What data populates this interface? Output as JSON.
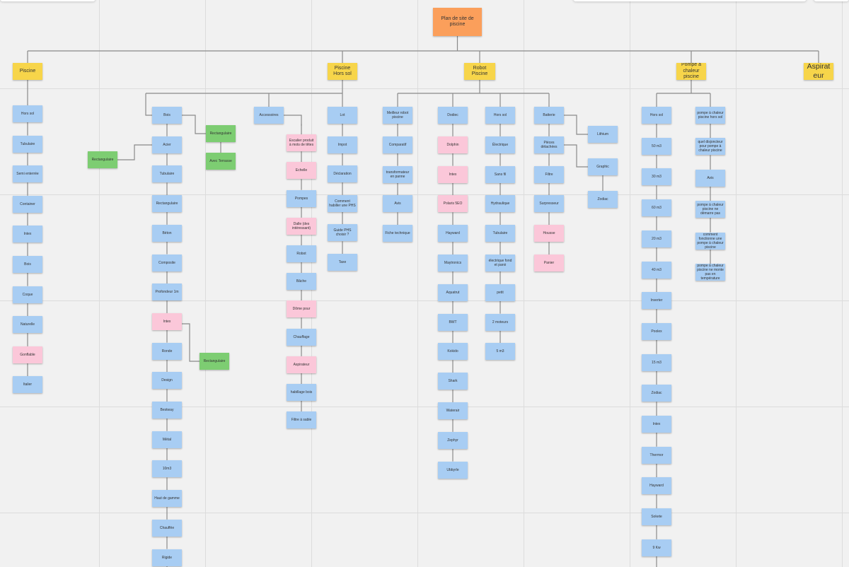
{
  "colors": {
    "blue": "#a8cdf3",
    "pink": "#fbc7d9",
    "green": "#7dcd72",
    "yellow": "#f7d54a",
    "orange": "#fb9f5b",
    "connector": "#8a8a8a"
  },
  "root": {
    "id": "root",
    "label": "Plan de site de piscine",
    "color": "orange"
  },
  "categories": [
    {
      "id": "piscine",
      "label": "Piscine",
      "color": "yellow"
    },
    {
      "id": "horssol",
      "label": "Piscine Hors sol",
      "color": "yellow"
    },
    {
      "id": "robot",
      "label": "Robot Piscine",
      "color": "yellow"
    },
    {
      "id": "pompe",
      "label": "Pompe à chaleur piscine",
      "color": "yellow"
    },
    {
      "id": "aspirateur",
      "label": "Aspirateur",
      "color": "yellow"
    }
  ],
  "columns": {
    "piscine_list": [
      "Hors sol",
      "Tubulaire",
      "Semi enterrée",
      "Container",
      "Intex",
      "Bois",
      "Coque",
      "Naturelle",
      "Gonflable",
      "Italier"
    ],
    "piscine_list_colors": [
      "blue",
      "blue",
      "blue",
      "blue",
      "blue",
      "blue",
      "blue",
      "blue",
      "pink",
      "blue"
    ],
    "bois_list": [
      "Bois",
      "Acier",
      "Tubulaire",
      "Rectangulaire",
      "Béton",
      "Composite",
      "Profondeur 1m",
      "Intex",
      "Ronde",
      "Design",
      "Bestway",
      "Métal",
      "10m3",
      "Haut de gamme",
      "Chauffée",
      "Rigide"
    ],
    "bois_list_colors": [
      "blue",
      "blue",
      "blue",
      "blue",
      "blue",
      "blue",
      "blue",
      "pink",
      "blue",
      "blue",
      "blue",
      "blue",
      "blue",
      "blue",
      "blue",
      "blue"
    ],
    "green_notes": [
      "Rectangulaire",
      "Avec Terrasse",
      "Rectangulaire",
      "Rectangulaire"
    ],
    "accessoires_list": [
      "Accessoires",
      "Escalier produit à mots de têtes",
      "Echelle",
      "Pompes",
      "Dalle (des intéressant)",
      "Robot",
      "Bâche",
      "Dôme pour",
      "Chauffage",
      "Aspirateur",
      "habillage bois",
      "Filtre à sable"
    ],
    "accessoires_list_colors": [
      "blue",
      "pink",
      "pink",
      "blue",
      "pink",
      "blue",
      "blue",
      "pink",
      "blue",
      "pink",
      "blue",
      "blue"
    ],
    "lot_list": [
      "Lot",
      "Impot",
      "Déclaration",
      "Comment habiller une PHS",
      "Guide PHS choisir ?",
      "Taxe"
    ],
    "meilleur_list": [
      "Meilleur robot piscine",
      "Comparatif",
      "transformateur en panne",
      "Avis",
      "Fiche technique"
    ],
    "dodiec_list": [
      "Dodiec",
      "Dolphin",
      "Intex",
      "Polaris 5EO",
      "Hayward",
      "Maytronics",
      "Aquatrut",
      "BWT",
      "Kokido",
      "Shark",
      "Waterair",
      "Zephyr",
      "Ubbyrle"
    ],
    "dodiec_list_colors": [
      "blue",
      "pink",
      "pink",
      "pink",
      "blue",
      "blue",
      "blue",
      "blue",
      "blue",
      "blue",
      "blue",
      "blue",
      "blue"
    ],
    "robot_horssol_list": [
      "Hors sol",
      "Électrique",
      "Sans fil",
      "Hydraulique",
      "Tubulaire",
      "électrique fond et paroi",
      "petit",
      "2 moteurs",
      "5 m3"
    ],
    "batterie_list": [
      "Batterie",
      "Pièces détachées",
      "Filtre",
      "Surpresseur",
      "Housse",
      "Panier"
    ],
    "batterie_list_colors": [
      "blue",
      "blue",
      "blue",
      "blue",
      "pink",
      "pink"
    ],
    "lithium": "Lithium",
    "sub_brands": [
      "Graphic",
      "Zodiac"
    ],
    "pompe_list": [
      "Hors sol",
      "50 m3",
      "30 m3",
      "60 m3",
      "20 m3",
      "40 m3",
      "Inverter",
      "Poolex",
      "15 m3",
      "Zodiac",
      "Intex",
      "Thermor",
      "Hayward",
      "Sokete",
      "9 Kw"
    ],
    "pompe_info_list": [
      "pompe à chaleur piscine hors sol",
      "quel disjoncteur pour pompe à chaleur piscine",
      "Avis",
      "pompe à chaleur piscine ne démarre pas",
      "comment fonctionne une pompe à chaleur piscine",
      "pompe à chaleur piscine ne monte pas en température"
    ]
  }
}
